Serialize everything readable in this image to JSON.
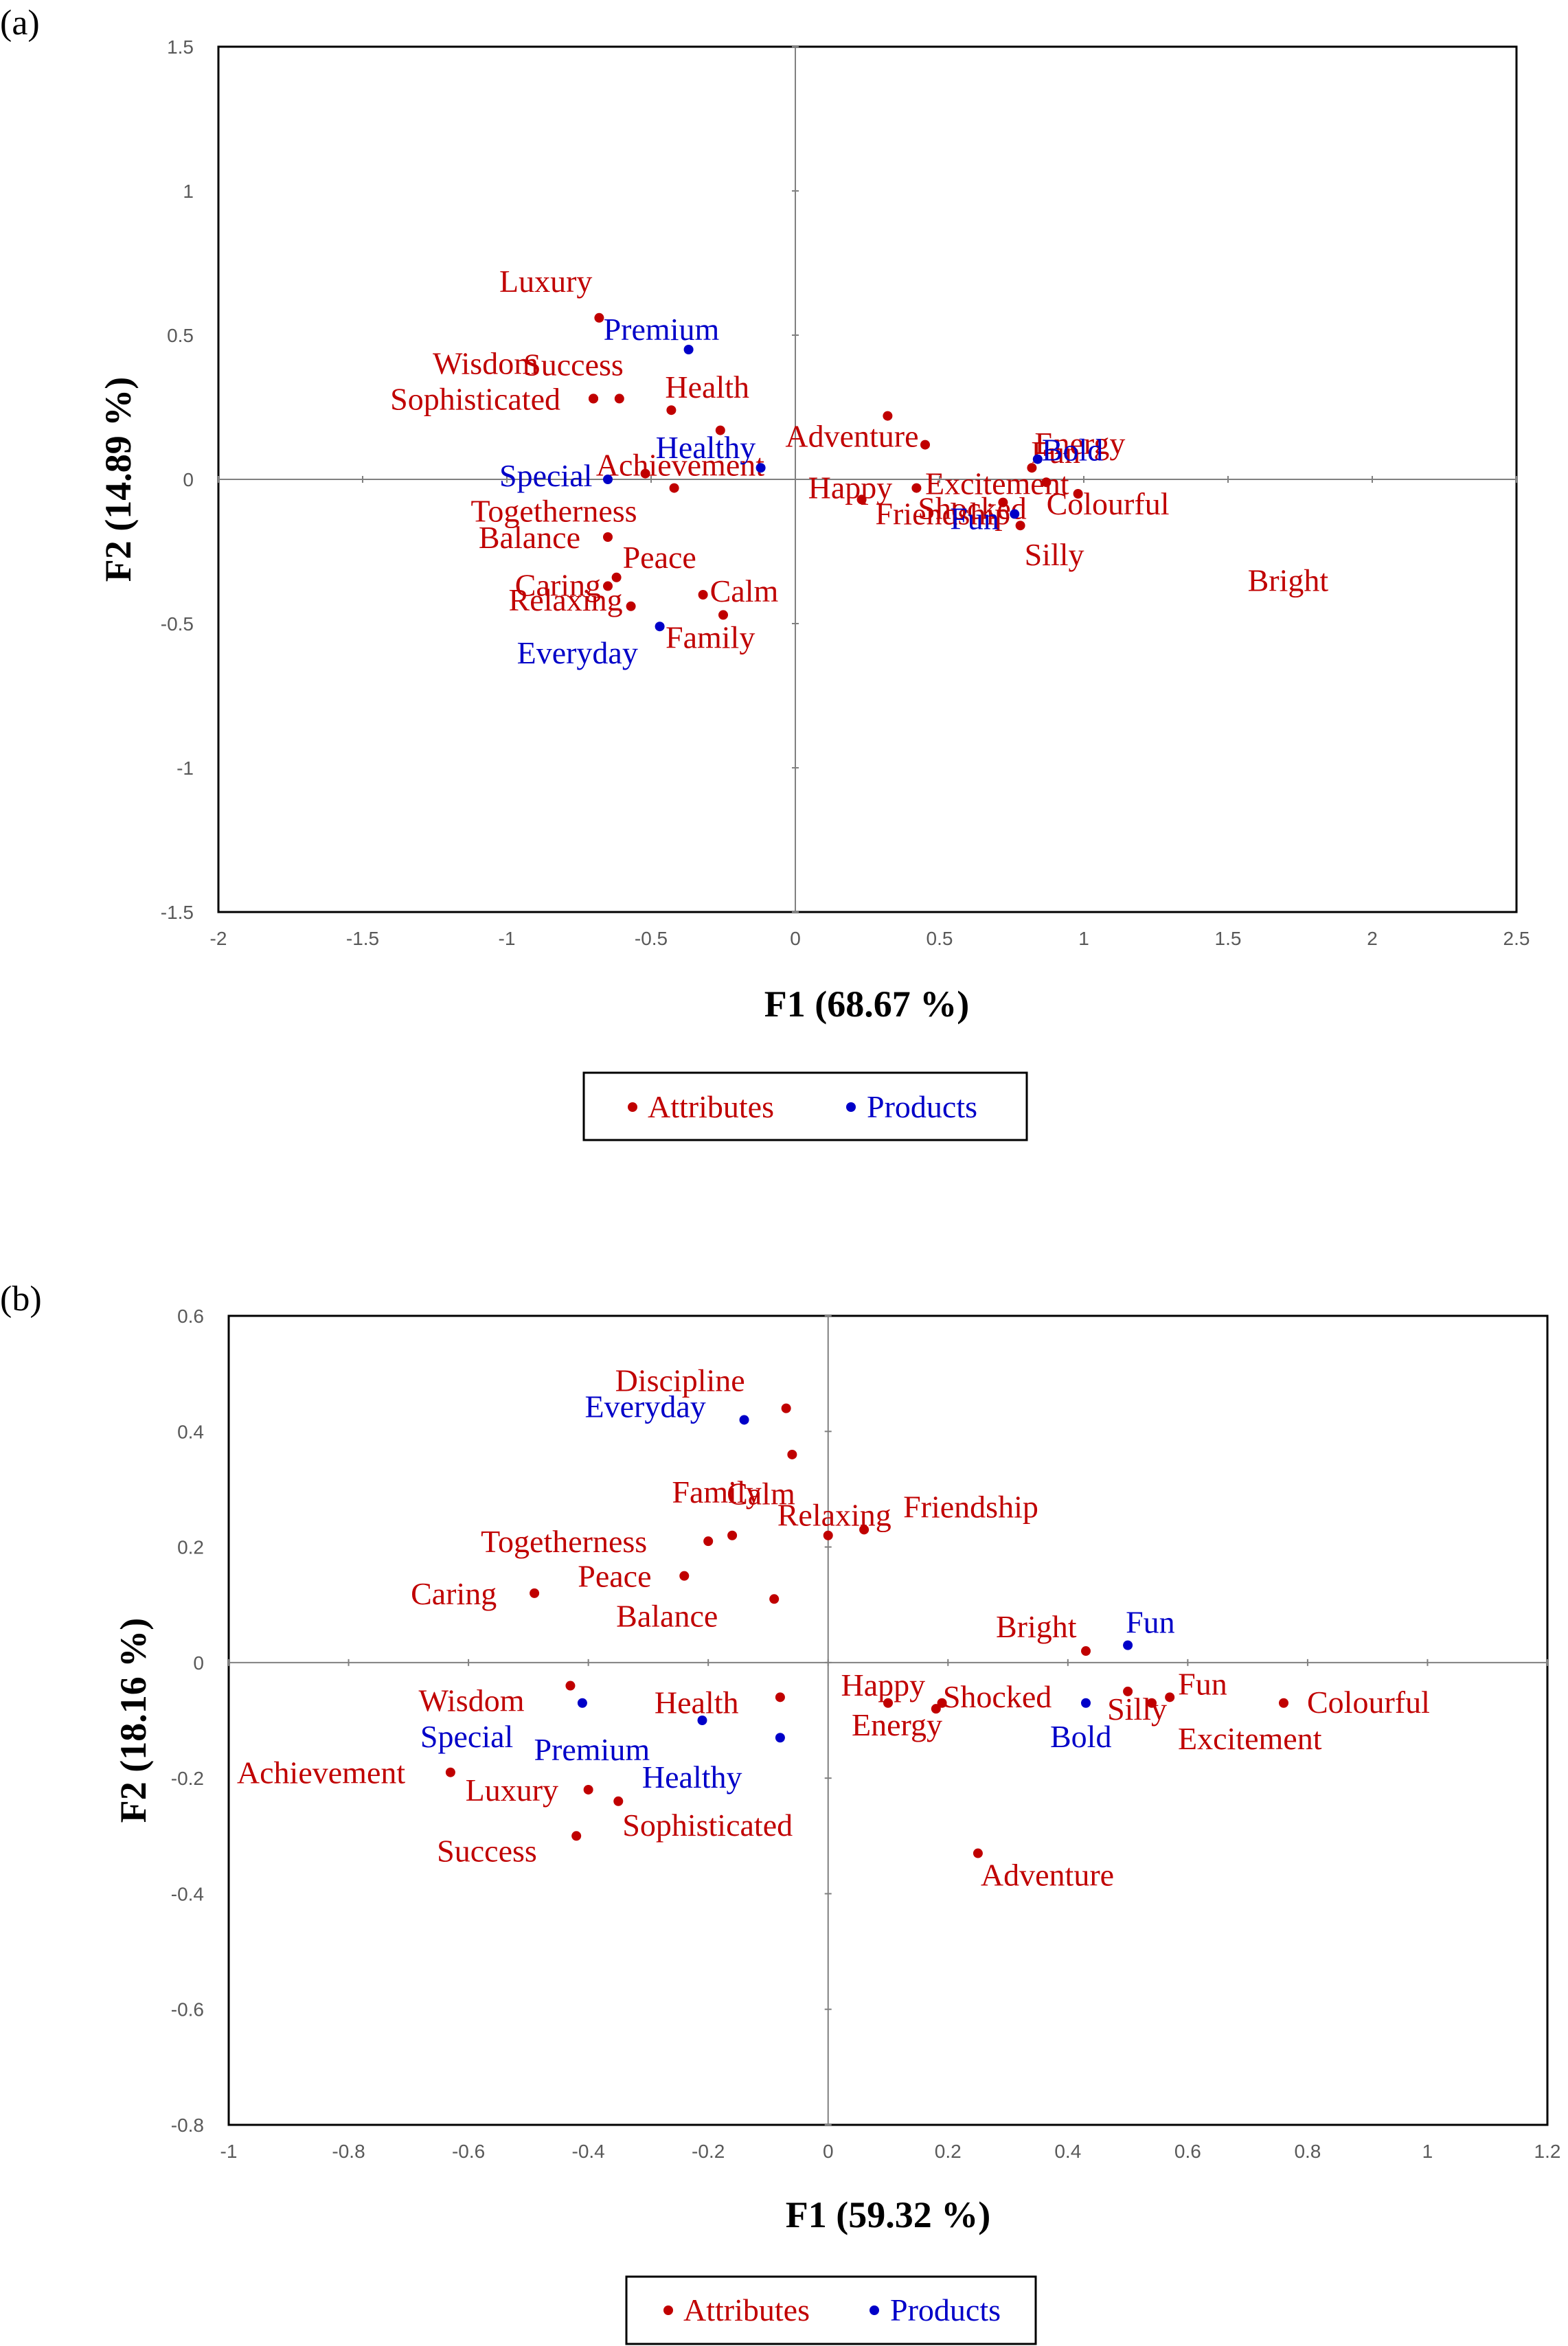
{
  "colors": {
    "attributes": "#c00000",
    "products": "#0000c8",
    "axis": "#808080",
    "frame": "#000000"
  },
  "chart_data": [
    {
      "panel": "(a)",
      "type": "scatter",
      "xlabel": "F1 (68.67 %)",
      "ylabel": "F2 (14.89 %)",
      "xlim": [
        -2,
        2.5
      ],
      "ylim": [
        -1.5,
        1.5
      ],
      "xticks": [
        "-2",
        "-1.5",
        "-1",
        "-0.5",
        "0",
        "0.5",
        "1",
        "1.5",
        "2",
        "2.5"
      ],
      "yticks": [
        "-1.5",
        "-1",
        "-0.5",
        "0",
        "0.5",
        "1",
        "1.5"
      ],
      "grid": false,
      "legend": {
        "placement": "bottom-center",
        "entries": [
          "Attributes",
          "Products"
        ]
      },
      "series": [
        {
          "name": "Attributes",
          "points": [
            {
              "label": "Luxury",
              "x": -0.68,
              "y": 0.56
            },
            {
              "label": "Wisdom",
              "x": -0.7,
              "y": 0.28
            },
            {
              "label": "Success",
              "x": -0.61,
              "y": 0.28
            },
            {
              "label": "Sophisticated",
              "x": -0.7,
              "y": 0.28
            },
            {
              "label": "Health",
              "x": -0.43,
              "y": 0.24
            },
            {
              "label": "Achievement",
              "x": -0.26,
              "y": 0.17
            },
            {
              "label": "Togetherness",
              "x": -0.52,
              "y": 0.02
            },
            {
              "label": "Balance",
              "x": -0.65,
              "y": -0.2
            },
            {
              "label": "Peace",
              "x": -0.62,
              "y": -0.34
            },
            {
              "label": "Caring",
              "x": -0.65,
              "y": -0.37
            },
            {
              "label": "Relaxing",
              "x": -0.57,
              "y": -0.44
            },
            {
              "label": "Calm",
              "x": -0.32,
              "y": -0.4
            },
            {
              "label": "Family",
              "x": -0.25,
              "y": -0.47
            },
            {
              "label": "Adventure",
              "x": 0.32,
              "y": 0.22
            },
            {
              "label": "Excitement",
              "x": 0.45,
              "y": 0.12
            },
            {
              "label": "Energy",
              "x": 0.82,
              "y": 0.04
            },
            {
              "label": "Fun",
              "x": 0.87,
              "y": -0.01
            },
            {
              "label": "Happy",
              "x": 0.23,
              "y": -0.07
            },
            {
              "label": "Shocked",
              "x": 0.72,
              "y": -0.08
            },
            {
              "label": "Friendship",
              "x": 0.42,
              "y": -0.03
            },
            {
              "label": "Colourful",
              "x": 0.98,
              "y": -0.05
            },
            {
              "label": "Silly",
              "x": 0.78,
              "y": -0.16
            },
            {
              "label": "Bright",
              "x": -0.42,
              "y": -0.03
            }
          ]
        },
        {
          "name": "Products",
          "points": [
            {
              "label": "Premium",
              "x": -0.37,
              "y": 0.45
            },
            {
              "label": "Healthy",
              "x": -0.12,
              "y": 0.04
            },
            {
              "label": "Special",
              "x": -0.65,
              "y": 0.0
            },
            {
              "label": "Everyday",
              "x": -0.47,
              "y": -0.51
            },
            {
              "label": "Bold",
              "x": 0.84,
              "y": 0.07
            },
            {
              "label": "Fun",
              "x": 0.76,
              "y": -0.12
            }
          ]
        }
      ]
    },
    {
      "panel": "(b)",
      "type": "scatter",
      "xlabel": "F1 (59.32 %)",
      "ylabel": "F2 (18.16 %)",
      "xlim": [
        -1,
        1.2
      ],
      "ylim": [
        -0.8,
        0.6
      ],
      "xticks": [
        "-1",
        "-0.8",
        "-0.6",
        "-0.4",
        "-0.2",
        "0",
        "0.2",
        "0.4",
        "0.6",
        "0.8",
        "1",
        "1.2"
      ],
      "yticks": [
        "-0.8",
        "-0.6",
        "-0.4",
        "-0.2",
        "0",
        "0.2",
        "0.4",
        "0.6"
      ],
      "grid": false,
      "legend": {
        "placement": "bottom-center",
        "entries": [
          "Attributes",
          "Products"
        ]
      },
      "series": [
        {
          "name": "Attributes",
          "points": [
            {
              "label": "Discipline",
              "x": -0.07,
              "y": 0.44
            },
            {
              "label": "Family",
              "x": -0.06,
              "y": 0.36
            },
            {
              "label": "Friendship",
              "x": 0.06,
              "y": 0.23
            },
            {
              "label": "Calm",
              "x": -0.16,
              "y": 0.22
            },
            {
              "label": "Relaxing",
              "x": 0.0,
              "y": 0.22
            },
            {
              "label": "Togetherness",
              "x": -0.2,
              "y": 0.21
            },
            {
              "label": "Peace",
              "x": -0.24,
              "y": 0.15
            },
            {
              "label": "Caring",
              "x": -0.49,
              "y": 0.12
            },
            {
              "label": "Balance",
              "x": -0.09,
              "y": 0.11
            },
            {
              "label": "Bright",
              "x": 0.43,
              "y": 0.02
            },
            {
              "label": "Happy",
              "x": 0.19,
              "y": -0.07
            },
            {
              "label": "Shocked",
              "x": 0.18,
              "y": -0.08
            },
            {
              "label": "Energy",
              "x": 0.1,
              "y": -0.07
            },
            {
              "label": "Fun",
              "x": 0.57,
              "y": -0.06
            },
            {
              "label": "Silly",
              "x": 0.5,
              "y": -0.05
            },
            {
              "label": "Colourful",
              "x": 0.76,
              "y": -0.07
            },
            {
              "label": "Excitement",
              "x": 0.54,
              "y": -0.07
            },
            {
              "label": "Wisdom",
              "x": -0.43,
              "y": -0.04
            },
            {
              "label": "Health",
              "x": -0.08,
              "y": -0.06
            },
            {
              "label": "Achievement",
              "x": -0.63,
              "y": -0.19
            },
            {
              "label": "Luxury",
              "x": -0.4,
              "y": -0.22
            },
            {
              "label": "Sophisticated",
              "x": -0.35,
              "y": -0.24
            },
            {
              "label": "Success",
              "x": -0.42,
              "y": -0.3
            },
            {
              "label": "Adventure",
              "x": 0.25,
              "y": -0.33
            }
          ]
        },
        {
          "name": "Products",
          "points": [
            {
              "label": "Everyday",
              "x": -0.14,
              "y": 0.42
            },
            {
              "label": "Fun",
              "x": 0.5,
              "y": 0.03
            },
            {
              "label": "Bold",
              "x": 0.43,
              "y": -0.07
            },
            {
              "label": "Special",
              "x": -0.41,
              "y": -0.07
            },
            {
              "label": "Premium",
              "x": -0.21,
              "y": -0.1
            },
            {
              "label": "Healthy",
              "x": -0.08,
              "y": -0.13
            }
          ]
        }
      ]
    }
  ]
}
